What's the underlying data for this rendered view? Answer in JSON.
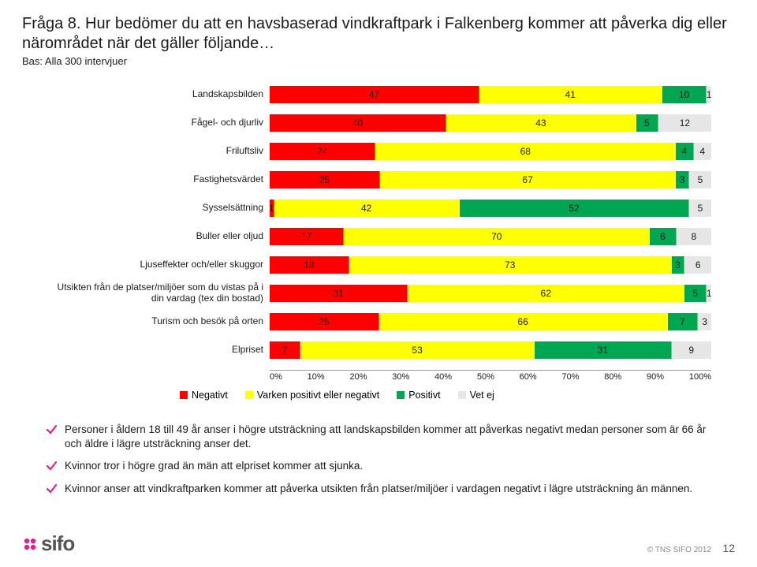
{
  "title": "Fråga 8. Hur bedömer du att en havsbaserad vindkraftpark i Falkenberg kommer att påverka dig eller närområdet när det gäller följande…",
  "subtitle": "Bas: Alla 300 intervjuer",
  "chart": {
    "type": "stacked-bar-horizontal",
    "categories": [
      "Landskapsbilden",
      "Fågel- och djurliv",
      "Friluftsliv",
      "Fastighetsvärdet",
      "Sysselsättning",
      "Buller eller oljud",
      "Ljuseffekter och/eller skuggor",
      "Utsikten från de platser/miljöer som du vistas på i din vardag (tex din bostad)",
      "Turism och besök på orten",
      "Elpriset"
    ],
    "series": [
      {
        "name": "Negativt",
        "color": "#ff0000"
      },
      {
        "name": "Varken positivt eller negativt",
        "color": "#ffff00"
      },
      {
        "name": "Positivt",
        "color": "#00a651"
      },
      {
        "name": "Vet ej",
        "color": "#e6e6e6"
      }
    ],
    "data": [
      [
        47,
        41,
        10,
        1
      ],
      [
        40,
        43,
        5,
        12
      ],
      [
        24,
        68,
        4,
        4
      ],
      [
        25,
        67,
        3,
        5
      ],
      [
        1,
        42,
        52,
        5
      ],
      [
        17,
        70,
        6,
        8
      ],
      [
        18,
        73,
        3,
        6
      ],
      [
        31,
        62,
        5,
        1
      ],
      [
        25,
        66,
        7,
        3
      ],
      [
        7,
        53,
        31,
        9
      ]
    ],
    "xlim": [
      0,
      100
    ],
    "xtick_step": 10,
    "xtick_suffix": "%",
    "label_fontsize": 12,
    "background_color": "#ffffff"
  },
  "legend_labels": [
    "Negativt",
    "Varken positivt eller negativt",
    "Positivt",
    "Vet ej"
  ],
  "legend_colors": [
    "#ff0000",
    "#ffff00",
    "#00a651",
    "#e6e6e6"
  ],
  "bullets": [
    "Personer i åldern 18 till 49 år anser i högre utsträckning att landskapsbilden kommer att påverkas negativt medan personer som är 66 år och äldre i lägre utsträckning anser det.",
    "Kvinnor tror i högre grad än män att elpriset kommer att sjunka.",
    "Kvinnor anser att vindkraftparken kommer att påverka utsikten från platser/miljöer i vardagen negativt i lägre utsträckning än männen."
  ],
  "bullet_icon_color": "#e71c8d",
  "logo": {
    "text": "sifo",
    "icon_color": "#e71c8d"
  },
  "copyright": "© TNS SIFO 2012",
  "page_number": "12"
}
